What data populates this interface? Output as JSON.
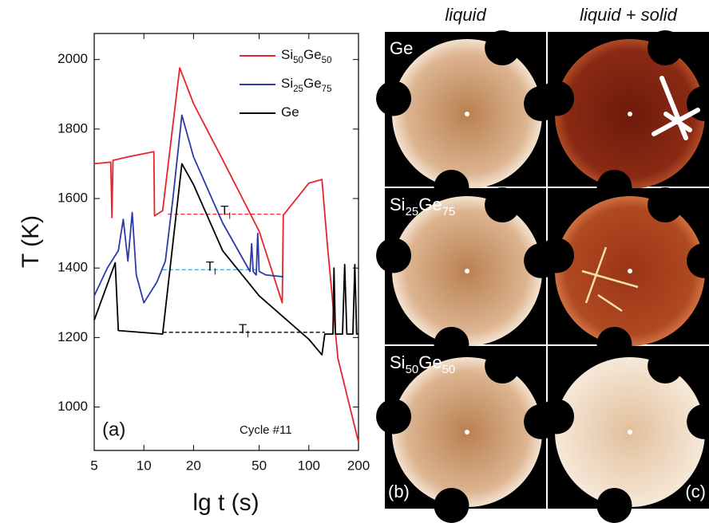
{
  "chart_data": {
    "type": "line",
    "xlabel": "lg t (s)",
    "ylabel": "T (K)",
    "annotations": [
      "(a)",
      "Cycle #11"
    ],
    "xscale": "log",
    "xlim": [
      5,
      200
    ],
    "xticks": [
      5,
      10,
      20,
      50,
      100,
      200
    ],
    "ylim": [
      875,
      2075
    ],
    "yticks": [
      1000,
      1200,
      1400,
      1600,
      1800,
      2000
    ],
    "legend": "upper right",
    "series": [
      {
        "name": "Si50Ge50",
        "color": "#e8242a",
        "x": [
          5,
          6.3,
          6.4,
          6.5,
          8,
          11.5,
          11.6,
          13,
          16.5,
          20,
          30,
          50,
          69,
          70,
          100,
          120,
          130,
          150,
          200
        ],
        "values": [
          1700,
          1705,
          1545,
          1710,
          1720,
          1735,
          1550,
          1565,
          1976,
          1873,
          1712,
          1506,
          1300,
          1552,
          1644,
          1655,
          1460,
          1140,
          899
        ]
      },
      {
        "name": "Si25Ge75",
        "color": "#2b3aa8",
        "x": [
          5,
          6,
          7,
          7.5,
          8,
          8.5,
          9,
          10,
          12,
          13.5,
          15,
          17,
          20,
          30,
          44,
          45,
          46,
          48,
          49,
          50,
          55,
          70
        ],
        "values": [
          1320,
          1400,
          1450,
          1540,
          1420,
          1560,
          1380,
          1300,
          1360,
          1420,
          1600,
          1840,
          1720,
          1530,
          1390,
          1470,
          1390,
          1380,
          1500,
          1390,
          1380,
          1375
        ]
      },
      {
        "name": "Ge",
        "color": "#000000",
        "x": [
          5,
          6.7,
          7,
          13,
          17,
          20,
          30,
          50,
          100,
          120,
          125,
          140,
          142,
          145,
          160,
          165,
          170,
          185,
          190,
          195,
          200
        ],
        "values": [
          1250,
          1415,
          1220,
          1210,
          1700,
          1640,
          1450,
          1320,
          1195,
          1150,
          1210,
          1210,
          1400,
          1210,
          1210,
          1410,
          1210,
          1210,
          1410,
          1210,
          1210
        ]
      }
    ],
    "liquidus": [
      {
        "label": "T",
        "sub": "l",
        "value": 1555,
        "color": "#e8242a",
        "x": [
          14,
          70
        ]
      },
      {
        "label": "T",
        "sub": "l",
        "value": 1395,
        "color": "#3aa0d8",
        "x": [
          13,
          50
        ]
      },
      {
        "label": "T",
        "sub": "l",
        "value": 1215,
        "color": "#000000",
        "x": [
          13,
          125
        ]
      }
    ]
  },
  "panels": {
    "columns": [
      "liquid",
      "liquid + solid"
    ],
    "rows": [
      "Ge",
      "Si25Ge75",
      "Si50Ge50"
    ],
    "tags": [
      "(b)",
      "(c)"
    ]
  }
}
